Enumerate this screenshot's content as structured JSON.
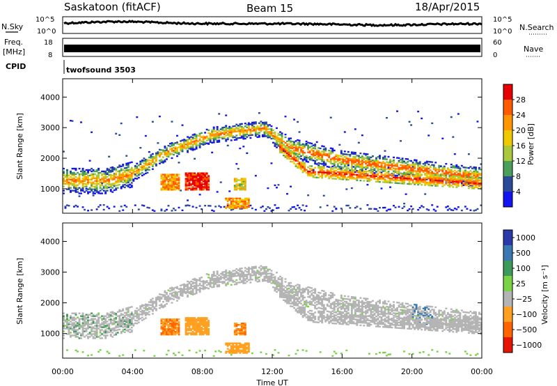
{
  "header": {
    "station": "Saskatoon (fitACF)",
    "beam": "Beam 15",
    "date": "18/Apr/2015"
  },
  "left_labels": {
    "nsky": "N.Sky",
    "freq_line1": "Freq.",
    "freq_line2": "[MHz]",
    "cpid": "CPID"
  },
  "right_labels": {
    "nsearch": "N.Search",
    "nave": "Nave"
  },
  "top_panels": {
    "noise_ticks_left": [
      "10^5",
      "10^0"
    ],
    "noise_ticks_right": [
      "10^5",
      "10^0"
    ],
    "freq_ticks_left": [
      "18",
      "8"
    ],
    "nave_ticks_right": [
      "60",
      "0"
    ],
    "cpid_text": "twofsound 3503"
  },
  "colors": {
    "scatter_white": "#ffffff",
    "ground_scatter": "#b4b4b4"
  },
  "chart_data": [
    {
      "type": "heatmap",
      "name": "power",
      "ylabel": "Slant Range [km]",
      "x_ticks": [
        "00:00",
        "04:00",
        "08:00",
        "12:00",
        "16:00",
        "20:00",
        "00:00"
      ],
      "x_range_hours": [
        0,
        24
      ],
      "y_ticks": [
        1000,
        2000,
        3000,
        4000
      ],
      "y_range_km": [
        200,
        4600
      ],
      "colorbar": {
        "label": "Power [dB]",
        "ticks": [
          "28",
          "24",
          "20",
          "16",
          "12",
          "8",
          "4"
        ],
        "colors": [
          "#e60000",
          "#ff5a00",
          "#ff9600",
          "#f0c800",
          "#aac83c",
          "#4aa05a",
          "#2a4a98",
          "#1414f0"
        ]
      }
    },
    {
      "type": "heatmap",
      "name": "velocity",
      "ylabel": "Slant Range [km]",
      "xlabel": "Time UT",
      "x_ticks": [
        "00:00",
        "04:00",
        "08:00",
        "12:00",
        "16:00",
        "20:00",
        "00:00"
      ],
      "x_range_hours": [
        0,
        24
      ],
      "y_ticks": [
        1000,
        2000,
        3000,
        4000
      ],
      "y_range_km": [
        200,
        4600
      ],
      "colorbar": {
        "label": "Velocity [m s⁻¹]",
        "ticks": [
          "1000",
          "500",
          "100",
          "25",
          "−25",
          "−100",
          "−500",
          "−1000"
        ],
        "colors": [
          "#2a3aa8",
          "#3a78b4",
          "#3c9a5a",
          "#7ad246",
          "#b4b4b4",
          "#ffa020",
          "#ff6400",
          "#e61400"
        ]
      }
    }
  ]
}
